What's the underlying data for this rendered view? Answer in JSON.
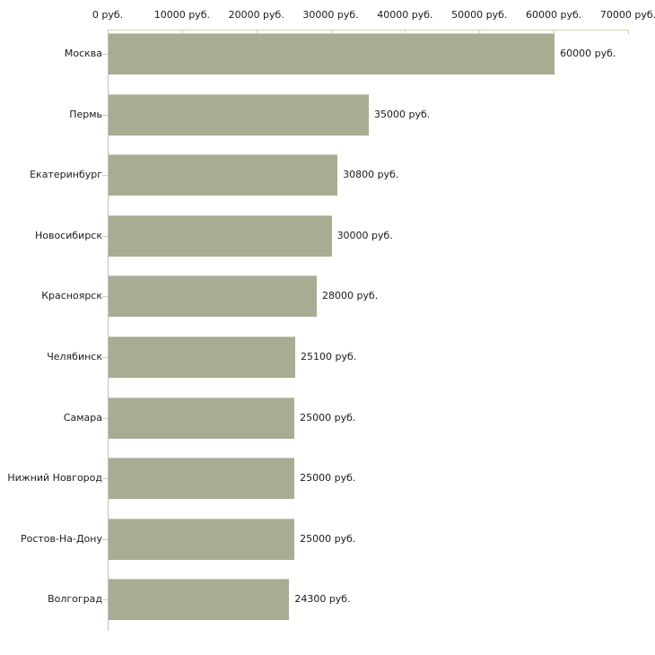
{
  "chart_data": {
    "type": "bar",
    "orientation": "horizontal",
    "title": "",
    "xlabel": "",
    "ylabel": "",
    "legend": false,
    "grid": false,
    "categories": [
      "Москва",
      "Пермь",
      "Екатеринбург",
      "Новосибирск",
      "Красноярск",
      "Челябинск",
      "Самара",
      "Нижний Новгород",
      "Ростов-На-Дону",
      "Волгоград"
    ],
    "values": [
      60000,
      35000,
      30800,
      30000,
      28000,
      25100,
      25000,
      25000,
      25000,
      24300
    ],
    "value_labels": [
      "60000 руб.",
      "35000 руб.",
      "30800 руб.",
      "30000 руб.",
      "28000 руб.",
      "25100 руб.",
      "25000 руб.",
      "25000 руб.",
      "25000 руб.",
      "24300 руб."
    ],
    "x_axis": {
      "position": "top",
      "min": 0,
      "max": 70000,
      "ticks": [
        0,
        10000,
        20000,
        30000,
        40000,
        50000,
        60000,
        70000
      ],
      "tick_labels": [
        "0 руб.",
        "10000 руб.",
        "20000 руб.",
        "30000 руб.",
        "40000 руб.",
        "50000 руб.",
        "60000 руб.",
        "70000 руб."
      ]
    },
    "colors": {
      "bar_fill": "#a8ac92",
      "bar_highlight": "#c9ccb6",
      "x_axis_line": "#d4d2a6",
      "y_axis_line": "#c0c0c0",
      "tick_color": "#d4d2a6",
      "text": "#1a1a1a",
      "background": "#ffffff"
    }
  }
}
